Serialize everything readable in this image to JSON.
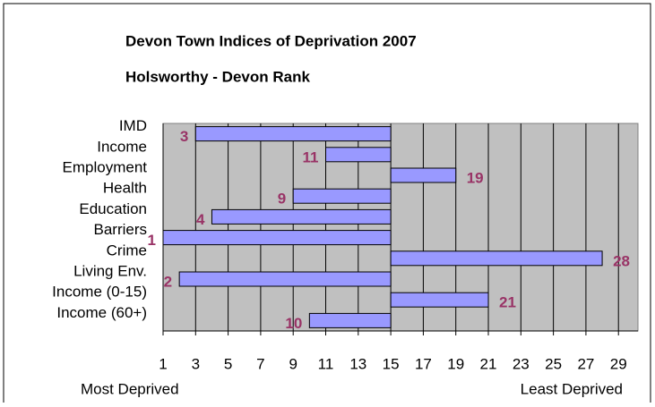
{
  "chart_data": {
    "type": "bar",
    "orientation": "horizontal",
    "title": "Devon Town Indices of Deprivation 2007",
    "subtitle": "Holsworthy - Devon Rank",
    "categories": [
      "IMD",
      "Income",
      "Employment",
      "Health",
      "Education",
      "Barriers",
      "Crime",
      "Living Env.",
      "Income (0-15)",
      "Income (60+)"
    ],
    "values": [
      3,
      11,
      19,
      9,
      4,
      1,
      28,
      2,
      21,
      10
    ],
    "bar_origin": 15,
    "color": "#9999ff",
    "label_color": "#993366",
    "background": "#c0c0c0",
    "xlim": [
      1,
      30.2
    ],
    "xticks": [
      1,
      3,
      5,
      7,
      9,
      11,
      13,
      15,
      17,
      19,
      21,
      23,
      25,
      27,
      29
    ],
    "grid": true,
    "x_label_left": "Most Deprived",
    "x_label_right": "Least Deprived"
  }
}
